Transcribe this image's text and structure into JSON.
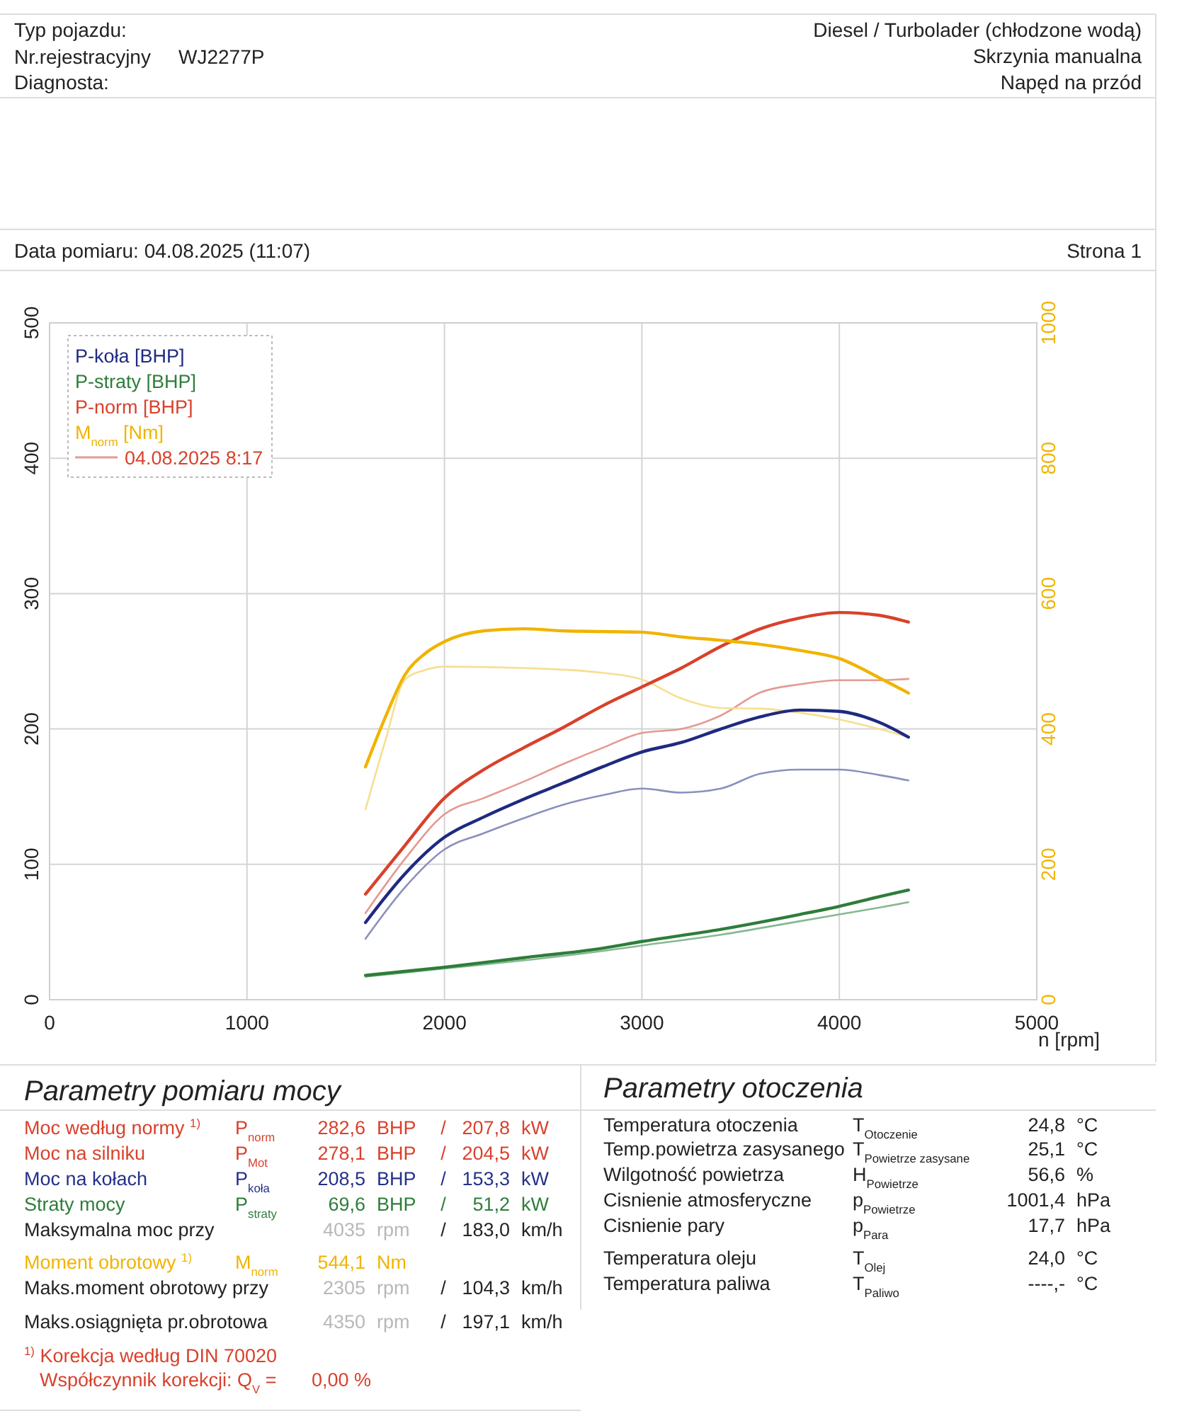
{
  "chart_data": {
    "type": "line",
    "xlabel": "n [rpm]",
    "xlim": [
      0,
      5000
    ],
    "xticks": [
      0,
      1000,
      2000,
      3000,
      4000,
      5000
    ],
    "ylim": [
      0,
      500
    ],
    "yticks": [
      0,
      100,
      200,
      300,
      400,
      500
    ],
    "y2lim": [
      0,
      1000
    ],
    "y2ticks": [
      0,
      200,
      400,
      600,
      800,
      1000
    ],
    "grid": true,
    "legend": "top left",
    "marker": "none",
    "line_style": "solid",
    "series": [
      {
        "name": "P-koła [BHP]",
        "color": "#1f2a80",
        "x": [
          1600,
          1800,
          2000,
          2200,
          2400,
          2600,
          2800,
          3000,
          3200,
          3400,
          3600,
          3800,
          4000,
          4200,
          4350
        ],
        "values": [
          57,
          93,
          120,
          135,
          148,
          160,
          172,
          183,
          190,
          200,
          209,
          214,
          213,
          205,
          194
        ]
      },
      {
        "name": "P-straty [BHP]",
        "color": "#2e7d3a",
        "x": [
          1600,
          2000,
          2400,
          2800,
          3000,
          3400,
          3800,
          4000,
          4200,
          4350
        ],
        "values": [
          18,
          24,
          31,
          38,
          43,
          52,
          63,
          69,
          76,
          81
        ]
      },
      {
        "name": "P-norm [BHP]",
        "color": "#d9412b",
        "x": [
          1600,
          1800,
          2000,
          2200,
          2400,
          2600,
          2800,
          3000,
          3200,
          3400,
          3600,
          3800,
          4000,
          4200,
          4350
        ],
        "values": [
          78,
          114,
          149,
          170,
          186,
          201,
          217,
          231,
          245,
          261,
          274,
          282,
          286,
          284,
          279
        ]
      },
      {
        "name": "M$_{norm}$ [Nm]",
        "color": "#f0b400",
        "axis": "y2",
        "x": [
          1600,
          1700,
          1800,
          1900,
          2000,
          2200,
          2400,
          2600,
          2800,
          3000,
          3200,
          3400,
          3600,
          3800,
          4000,
          4200,
          4350
        ],
        "values": [
          344,
          417,
          480,
          511,
          529,
          545,
          548,
          545,
          544,
          543,
          536,
          531,
          525,
          516,
          504,
          476,
          453
        ]
      },
      {
        "color": "#8a90bd",
        "x": [
          1600,
          1800,
          2000,
          2200,
          2400,
          2600,
          2800,
          3000,
          3200,
          3400,
          3600,
          3800,
          4000,
          4200,
          4350
        ],
        "values": [
          45,
          83,
          111,
          123,
          134,
          144,
          151,
          156,
          153,
          156,
          167,
          170,
          170,
          166,
          162
        ]
      },
      {
        "color": "#86b892",
        "x": [
          1600,
          2000,
          2400,
          2800,
          3000,
          3400,
          3800,
          4000,
          4200,
          4350
        ],
        "values": [
          17,
          23,
          29,
          36,
          40,
          48,
          58,
          63,
          68,
          72
        ]
      },
      {
        "name": "04.08.2025 8:17",
        "color": "#e39a92",
        "x": [
          1600,
          1800,
          2000,
          2200,
          2400,
          2600,
          2800,
          3000,
          3200,
          3400,
          3600,
          3800,
          4000,
          4200,
          4350
        ],
        "values": [
          64,
          104,
          137,
          149,
          161,
          174,
          186,
          197,
          200,
          210,
          227,
          233,
          236,
          236,
          237
        ]
      },
      {
        "color": "#f6df90",
        "axis": "y2",
        "x": [
          1600,
          1700,
          1800,
          1900,
          2000,
          2400,
          2800,
          3000,
          3200,
          3400,
          3600,
          3800,
          4000,
          4200,
          4350
        ],
        "values": [
          281,
          382,
          473,
          487,
          492,
          490,
          483,
          473,
          445,
          431,
          430,
          424,
          414,
          400,
          388
        ]
      }
    ],
    "annotations": [
      "Typ pojazdu:",
      "Nr.rejestracyjny\tWJ2277P",
      "Diagnosta:",
      "Diesel / Turbolader (chłodzone wodą)",
      "Skrzynia manualna",
      "Napęd na przód",
      "Data pomiaru: 04.08.2025 (11:07)",
      "Strona 1",
      "Parametry pomiaru mocy",
      "Moc według normy $^{1)}$\tP$_{norm}$\t282,6\tBHP\t/\t207,8\tkW",
      "Moc na silniku\tP$_{Mot}$\t278,1\tBHP\t/\t204,5\tkW",
      "Moc na kołach\tP$_{koła}$\t208,5\tBHP\t/\t153,3\tkW",
      "Straty mocy\tP$_{straty}$\t69,6\tBHP\t/\t51,2\tkW",
      "Maksymalna moc przy\t\t4035\trpm\t/\t183,0\tkm/h",
      "Moment obrotowy $^{1)}$\tM$_{norm}$\t544,1\tNm",
      "Maks.moment obrotowy przy\t\t2305\trpm\t/\t104,3\tkm/h",
      "Maks.osiągnięta pr.obrotowa\t\t4350\trpm\t/\t197,1\tkm/h",
      "$^{1)}$ Korekcja według DIN 70020",
      "Współczynnik korekcji: Q$_{V}$ =\t0,00 %",
      "Parametry otoczenia",
      "Temperatura otoczenia\tT$_{Otoczenie}$\t24,8\t°C",
      "Temp.powietrza zasysanego\tT$_{Powietrze zasysane}$\t25,1\t°C",
      "Wilgotność powietrza\tH$_{Powietrze}$\t56,6\t%",
      "Cisnienie atmosferyczne\tp$_{Powietrze}$\t1001,4\thPa",
      "Cisnienie pary\tp$_{Para}$\t17,7\thPa",
      "Temperatura oleju\tT$_{Olej}$\t24,0\t°C",
      "Temperatura paliwa\tT$_{Paliwo}$\t----,-\t°C"
    ]
  }
}
